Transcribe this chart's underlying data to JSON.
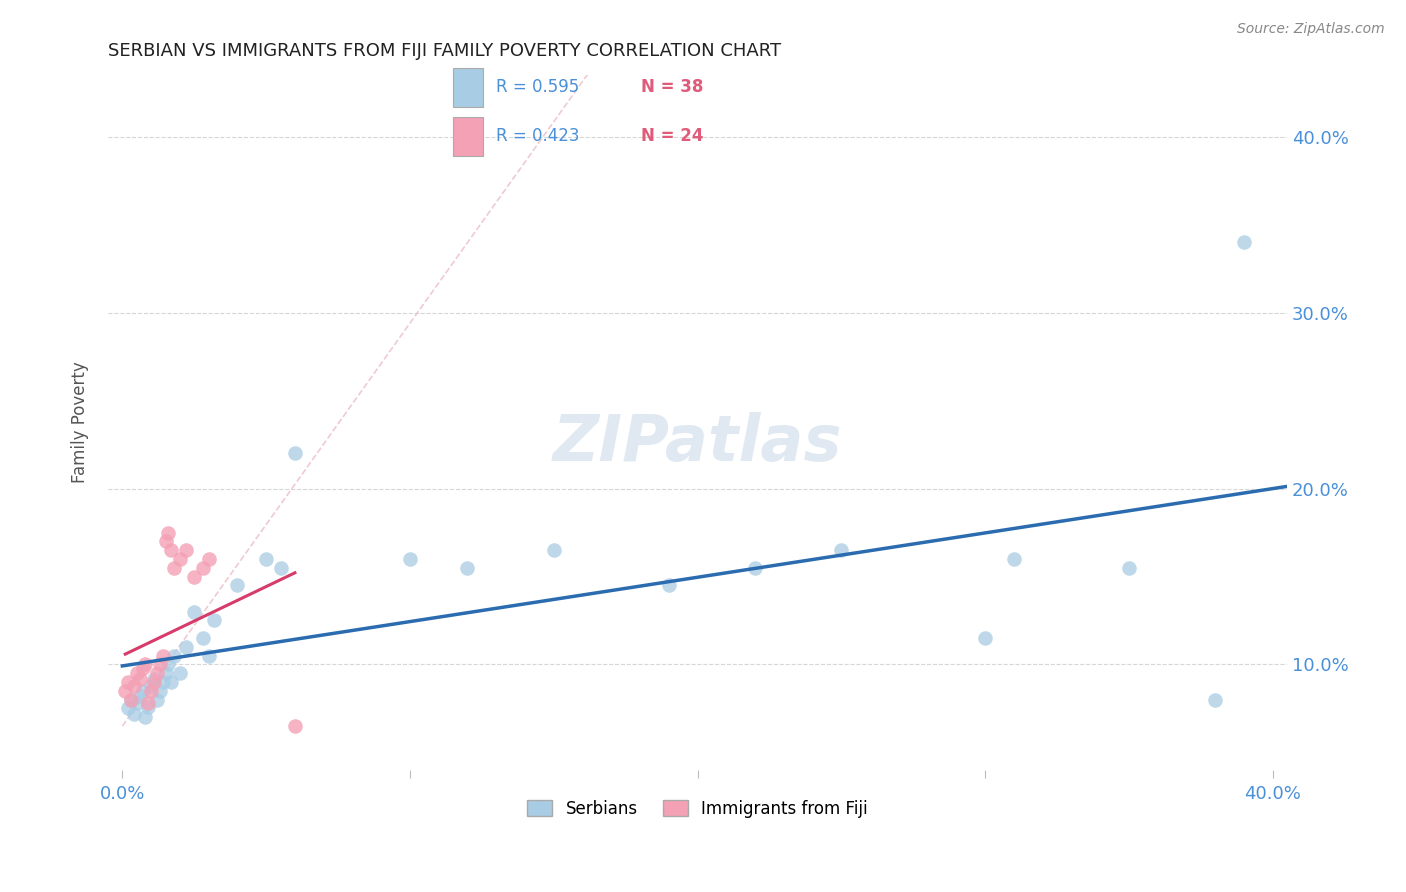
{
  "title": "SERBIAN VS IMMIGRANTS FROM FIJI FAMILY POVERTY CORRELATION CHART",
  "source": "Source: ZipAtlas.com",
  "ylabel": "Family Poverty",
  "xlim": [
    -0.005,
    0.405
  ],
  "ylim": [
    0.04,
    0.435
  ],
  "xticks": [
    0.0,
    0.1,
    0.2,
    0.3,
    0.4
  ],
  "xtick_labels": [
    "0.0%",
    "",
    "",
    "",
    "40.0%"
  ],
  "yticks_right": [
    0.1,
    0.2,
    0.3,
    0.4
  ],
  "ytick_labels_right": [
    "10.0%",
    "20.0%",
    "30.0%",
    "40.0%"
  ],
  "legend_r1": "R = 0.595",
  "legend_n1": "N = 38",
  "legend_r2": "R = 0.423",
  "legend_n2": "N = 24",
  "legend_label1": "Serbians",
  "legend_label2": "Immigrants from Fiji",
  "color_blue": "#a8cce4",
  "color_pink": "#f4a0b5",
  "color_blue_line": "#2b6cb0",
  "color_pink_line": "#d63b6a",
  "color_diag": "#e8b4c0",
  "watermark": "ZIPatlas",
  "serbian_x": [
    0.002,
    0.003,
    0.004,
    0.005,
    0.006,
    0.007,
    0.008,
    0.009,
    0.01,
    0.011,
    0.012,
    0.013,
    0.014,
    0.015,
    0.016,
    0.017,
    0.018,
    0.02,
    0.022,
    0.025,
    0.028,
    0.03,
    0.032,
    0.04,
    0.05,
    0.055,
    0.06,
    0.1,
    0.12,
    0.15,
    0.19,
    0.22,
    0.25,
    0.3,
    0.31,
    0.35,
    0.38,
    0.39
  ],
  "serbian_y": [
    0.075,
    0.08,
    0.072,
    0.078,
    0.082,
    0.085,
    0.07,
    0.076,
    0.088,
    0.092,
    0.08,
    0.085,
    0.09,
    0.095,
    0.1,
    0.09,
    0.105,
    0.095,
    0.11,
    0.13,
    0.115,
    0.105,
    0.125,
    0.145,
    0.16,
    0.155,
    0.22,
    0.16,
    0.155,
    0.165,
    0.145,
    0.155,
    0.165,
    0.115,
    0.16,
    0.155,
    0.08,
    0.34
  ],
  "fiji_x": [
    0.001,
    0.002,
    0.003,
    0.004,
    0.005,
    0.006,
    0.007,
    0.008,
    0.009,
    0.01,
    0.011,
    0.012,
    0.013,
    0.014,
    0.015,
    0.016,
    0.017,
    0.018,
    0.02,
    0.022,
    0.025,
    0.028,
    0.03,
    0.06
  ],
  "fiji_y": [
    0.085,
    0.09,
    0.08,
    0.088,
    0.095,
    0.092,
    0.098,
    0.1,
    0.078,
    0.085,
    0.09,
    0.095,
    0.1,
    0.105,
    0.17,
    0.175,
    0.165,
    0.155,
    0.16,
    0.165,
    0.15,
    0.155,
    0.16,
    0.065
  ]
}
